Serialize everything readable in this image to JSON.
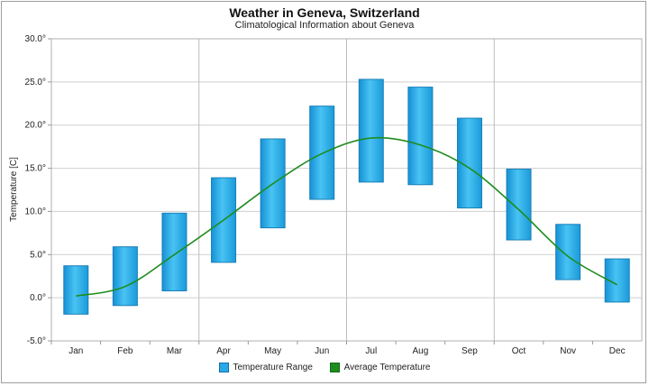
{
  "chart_data": {
    "type": "bar",
    "title": "Weather in Geneva, Switzerland",
    "subtitle": "Climatological Information about Geneva",
    "ylabel": "Temperature [C]",
    "xlabel": "",
    "ylim": [
      -5,
      30
    ],
    "yticks": [
      -5,
      0,
      5,
      10,
      15,
      20,
      25,
      30
    ],
    "ytick_labels": [
      "-5.0°",
      "0.0°",
      "5.0°",
      "10.0°",
      "15.0°",
      "20.0°",
      "25.0°",
      "30.0°"
    ],
    "categories": [
      "Jan",
      "Feb",
      "Mar",
      "Apr",
      "May",
      "Jun",
      "Jul",
      "Aug",
      "Sep",
      "Oct",
      "Nov",
      "Dec"
    ],
    "series": [
      {
        "name": "Temperature Range",
        "type": "range-bar",
        "color": "#29a9e8",
        "low": [
          -1.9,
          -0.9,
          0.8,
          4.1,
          8.1,
          11.4,
          13.4,
          13.1,
          10.4,
          6.7,
          2.1,
          -0.5
        ],
        "high": [
          3.7,
          5.9,
          9.8,
          13.9,
          18.4,
          22.2,
          25.3,
          24.4,
          20.8,
          14.9,
          8.5,
          4.5
        ]
      },
      {
        "name": "Average Temperature",
        "type": "line",
        "color": "#1e8c1e",
        "values": [
          0.2,
          1.3,
          5.0,
          9.0,
          13.2,
          16.7,
          18.5,
          17.7,
          15.0,
          10.2,
          4.8,
          1.5
        ]
      }
    ],
    "grid": true,
    "legend": "bottom-center"
  }
}
